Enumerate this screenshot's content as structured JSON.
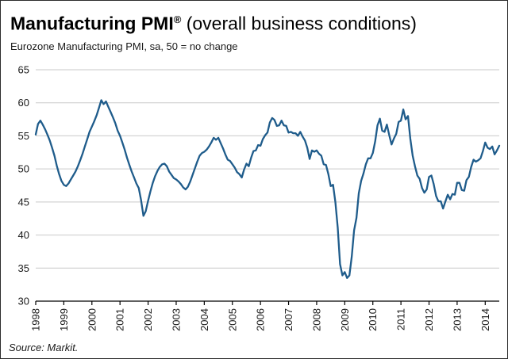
{
  "header": {
    "title_main": "Manufacturing PMI",
    "title_reg_mark": "®",
    "title_suffix": " (overall business conditions)",
    "subtitle": "Eurozone Manufacturing PMI, sa, 50 = no change"
  },
  "footer": {
    "source": "Source: Markit."
  },
  "chart_data": {
    "type": "line",
    "title": "Manufacturing PMI (overall business conditions)",
    "subtitle": "Eurozone Manufacturing PMI, sa, 50 = no change",
    "series_name": "Eurozone Manufacturing PMI (sa)",
    "frequency": "monthly",
    "start_year": 1998,
    "x_range": "Jan 1998 - mid 2014",
    "ylim": [
      30,
      65
    ],
    "yticks": [
      30,
      35,
      40,
      45,
      50,
      55,
      60,
      65
    ],
    "xtick_labels": [
      "1998",
      "1999",
      "2000",
      "2001",
      "2002",
      "2003",
      "2004",
      "2005",
      "2006",
      "2007",
      "2008",
      "2009",
      "2010",
      "2011",
      "2012",
      "2013",
      "2014"
    ],
    "grid": true,
    "legend_position": "none",
    "line_color": "#1F5C8B",
    "grid_color": "#c9c9c9",
    "axis_color": "#000000",
    "values": [
      55.2,
      56.8,
      57.3,
      56.7,
      56.0,
      55.2,
      54.3,
      53.2,
      52.0,
      50.5,
      49.2,
      48.2,
      47.6,
      47.4,
      47.8,
      48.4,
      49.0,
      49.6,
      50.4,
      51.3,
      52.3,
      53.4,
      54.5,
      55.6,
      56.4,
      57.2,
      58.1,
      59.2,
      60.4,
      59.8,
      60.2,
      59.4,
      58.6,
      57.8,
      56.9,
      55.8,
      55.0,
      54.0,
      52.9,
      51.7,
      50.6,
      49.6,
      48.7,
      47.8,
      47.1,
      45.3,
      42.9,
      43.6,
      45.2,
      46.6,
      47.9,
      48.9,
      49.7,
      50.3,
      50.7,
      50.8,
      50.4,
      49.6,
      49.1,
      48.6,
      48.4,
      48.1,
      47.7,
      47.2,
      46.9,
      47.3,
      48.1,
      49.1,
      50.1,
      51.1,
      52.0,
      52.4,
      52.6,
      52.9,
      53.4,
      54.0,
      54.7,
      54.4,
      54.7,
      53.9,
      53.1,
      52.2,
      51.4,
      51.2,
      50.7,
      50.2,
      49.5,
      49.2,
      48.7,
      49.9,
      50.8,
      50.4,
      51.7,
      52.7,
      52.8,
      53.6,
      53.5,
      54.5,
      55.1,
      55.5,
      57.0,
      57.7,
      57.4,
      56.5,
      56.6,
      57.3,
      56.6,
      56.5,
      55.5,
      55.6,
      55.4,
      55.4,
      55.0,
      55.6,
      54.9,
      54.3,
      53.2,
      51.5,
      52.8,
      52.6,
      52.8,
      52.3,
      52.0,
      50.7,
      50.6,
      49.2,
      47.4,
      47.6,
      45.0,
      41.1,
      35.6,
      33.9,
      34.4,
      33.5,
      33.9,
      36.8,
      40.7,
      42.6,
      46.3,
      48.2,
      49.3,
      50.7,
      51.6,
      51.6,
      52.4,
      54.2,
      56.6,
      57.6,
      55.8,
      55.6,
      56.7,
      55.1,
      53.7,
      54.6,
      55.3,
      57.1,
      57.3,
      59.0,
      57.5,
      58.0,
      54.6,
      52.0,
      50.4,
      49.0,
      48.5,
      47.1,
      46.4,
      46.9,
      48.8,
      49.0,
      47.7,
      45.9,
      45.1,
      45.1,
      44.0,
      45.1,
      46.1,
      45.4,
      46.2,
      46.1,
      47.9,
      47.9,
      46.8,
      46.7,
      48.3,
      48.8,
      50.3,
      51.4,
      51.1,
      51.3,
      51.6,
      52.7,
      54.0,
      53.2,
      53.0,
      53.4,
      52.2,
      52.8,
      53.5
    ]
  }
}
